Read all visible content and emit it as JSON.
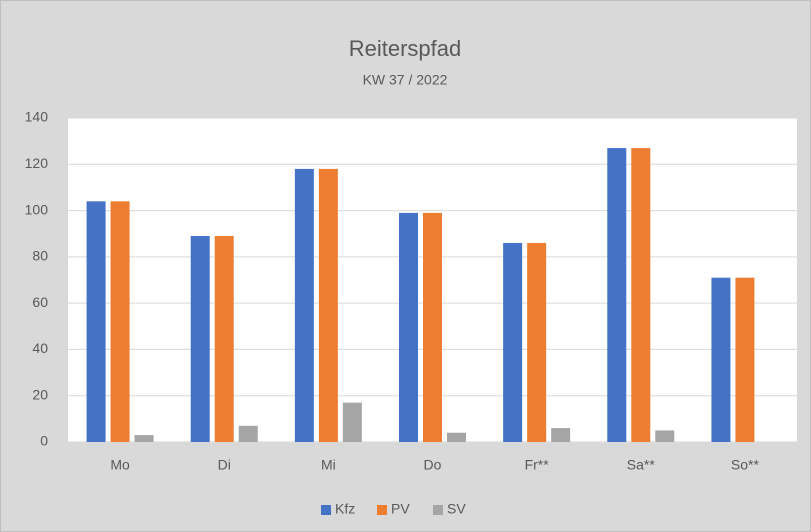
{
  "chart_data": {
    "type": "bar",
    "title": "Reiterspfad",
    "subtitle": "KW 37 / 2022",
    "categories": [
      "Mo",
      "Di",
      "Mi",
      "Do",
      "Fr**",
      "Sa**",
      "So**"
    ],
    "series": [
      {
        "name": "Kfz",
        "color": "#4472c4",
        "values": [
          104,
          89,
          118,
          99,
          86,
          127,
          71
        ]
      },
      {
        "name": "PV",
        "color": "#ed7d31",
        "values": [
          104,
          89,
          118,
          99,
          86,
          127,
          71
        ]
      },
      {
        "name": "SV",
        "color": "#a5a5a5",
        "values": [
          3,
          7,
          17,
          4,
          6,
          5,
          0
        ]
      }
    ],
    "ylim": [
      0,
      140
    ],
    "yticks": [
      0,
      20,
      40,
      60,
      80,
      100,
      120,
      140
    ],
    "grid": true,
    "legend": "bottom"
  }
}
